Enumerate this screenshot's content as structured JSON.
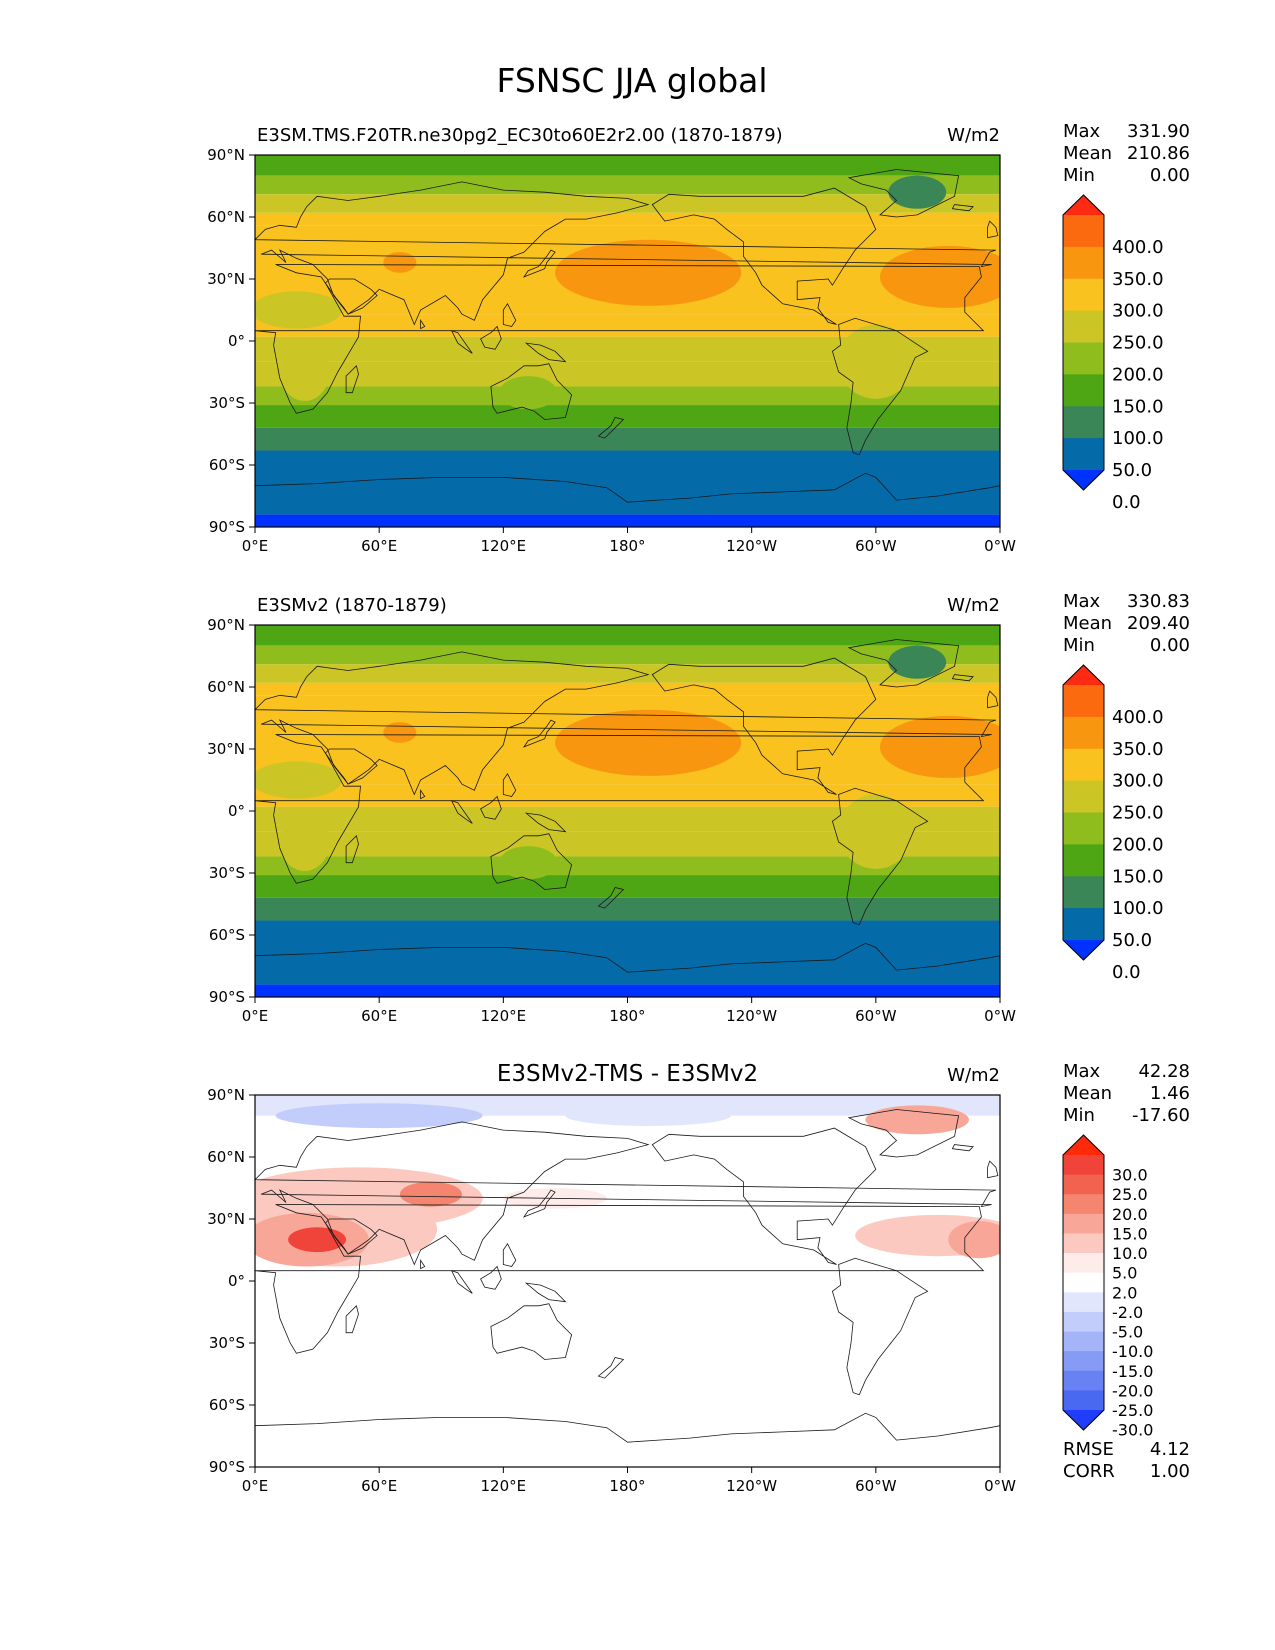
{
  "figure": {
    "title": "FSNSC JJA global",
    "lat_ticks": [
      "90°N",
      "60°N",
      "30°N",
      "0°",
      "30°S",
      "60°S",
      "90°S"
    ],
    "lon_ticks": [
      "0°E",
      "60°E",
      "120°E",
      "180°",
      "120°W",
      "60°W",
      "0°W"
    ]
  },
  "panels": [
    {
      "id": "test",
      "title": "E3SM.TMS.F20TR.ne30pg2_EC30to60E2r2.00 (1870-1879)",
      "title_center": false,
      "units": "W/m2",
      "stats": [
        {
          "label": "Max",
          "value": "331.90"
        },
        {
          "label": "Mean",
          "value": "210.86"
        },
        {
          "label": "Min",
          "value": "0.00"
        }
      ],
      "colorbar_labels": [
        "400.0",
        "350.0",
        "300.0",
        "250.0",
        "200.0",
        "150.0",
        "100.0",
        "50.0",
        "0.0"
      ],
      "colorbar_colors": [
        "#ff2a12",
        "#fb6a0e",
        "#f9960f",
        "#f9c21f",
        "#cbc626",
        "#8fbd1e",
        "#4ea615",
        "#3b8656",
        "#046aa8",
        "#0032ff"
      ],
      "footer": []
    },
    {
      "id": "reference",
      "title": "E3SMv2 (1870-1879)",
      "title_center": false,
      "units": "W/m2",
      "stats": [
        {
          "label": "Max",
          "value": "330.83"
        },
        {
          "label": "Mean",
          "value": "209.40"
        },
        {
          "label": "Min",
          "value": "0.00"
        }
      ],
      "colorbar_labels": [
        "400.0",
        "350.0",
        "300.0",
        "250.0",
        "200.0",
        "150.0",
        "100.0",
        "50.0",
        "0.0"
      ],
      "colorbar_colors": [
        "#ff2a12",
        "#fb6a0e",
        "#f9960f",
        "#f9c21f",
        "#cbc626",
        "#8fbd1e",
        "#4ea615",
        "#3b8656",
        "#046aa8",
        "#0032ff"
      ],
      "footer": []
    },
    {
      "id": "difference",
      "title": "E3SMv2-TMS - E3SMv2",
      "title_center": true,
      "units": "W/m2",
      "stats": [
        {
          "label": "Max",
          "value": "42.28"
        },
        {
          "label": "Mean",
          "value": "1.46"
        },
        {
          "label": "Min",
          "value": "-17.60"
        }
      ],
      "colorbar_labels": [
        "30.0",
        "25.0",
        "20.0",
        "15.0",
        "10.0",
        "5.0",
        "2.0",
        "-2.0",
        "-5.0",
        "-10.0",
        "-15.0",
        "-20.0",
        "-25.0",
        "-30.0"
      ],
      "colorbar_colors": [
        "#ff2a0a",
        "#f0433a",
        "#f2634f",
        "#f5856f",
        "#f8a697",
        "#fbc9bf",
        "#feecea",
        "#ffffff",
        "#e1e6fd",
        "#c3cdfb",
        "#a5b4f8",
        "#869bf6",
        "#6882f3",
        "#4a69f1",
        "#1f3dfa"
      ],
      "footer": [
        {
          "label": "RMSE",
          "value": "4.12"
        },
        {
          "label": "CORR",
          "value": "1.00"
        }
      ]
    }
  ]
}
